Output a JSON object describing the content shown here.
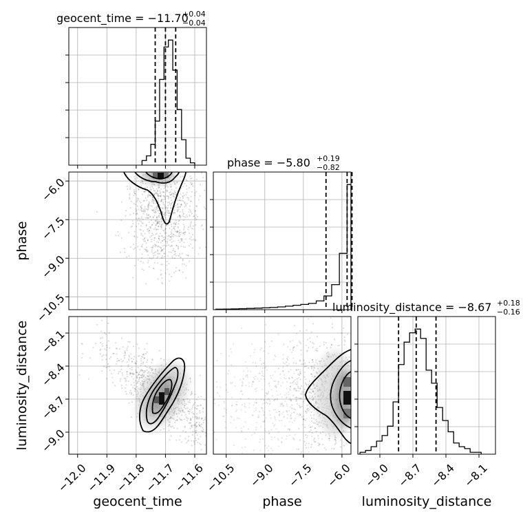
{
  "chart_data": {
    "type": "corner",
    "parameters": [
      {
        "name": "geocent_time",
        "median": -11.7,
        "plus": 0.04,
        "minus": 0.04,
        "title": {
          "prefix": "geocent_time = −11.70",
          "sup": "+0.04",
          "sub": "−0.04"
        },
        "range": [
          -12.03,
          -11.56
        ],
        "ticks": [
          -12.0,
          -11.9,
          -11.8,
          -11.7,
          -11.6
        ],
        "tick_labels": [
          "−12.0",
          "−11.9",
          "−11.8",
          "−11.7",
          "−11.6"
        ],
        "quantile_lines": [
          -11.735,
          -11.7,
          -11.665
        ],
        "histogram": {
          "bin_edges": [
            -11.78,
            -11.765,
            -11.75,
            -11.735,
            -11.72,
            -11.705,
            -11.69,
            -11.675,
            -11.66,
            -11.645,
            -11.63,
            -11.615,
            -11.6
          ],
          "counts": [
            2,
            4,
            9,
            19,
            37,
            51,
            54,
            41,
            24,
            11,
            3,
            1
          ]
        }
      },
      {
        "name": "phase",
        "median": -5.8,
        "plus": 0.19,
        "minus": 0.82,
        "title": {
          "prefix": "phase = −5.80",
          "sup": "+0.19",
          "sub": "−0.82"
        },
        "range": [
          -11.0,
          -5.65
        ],
        "ticks": [
          -10.5,
          -9.0,
          -7.5,
          -6.0
        ],
        "tick_labels": [
          "−10.5",
          "−9.0",
          "−7.5",
          "−6.0"
        ],
        "quantile_lines": [
          -6.62,
          -5.8,
          -5.61
        ],
        "histogram": {
          "bin_edges": [
            -10.9,
            -10.6,
            -10.3,
            -10.0,
            -9.7,
            -9.4,
            -9.1,
            -8.8,
            -8.5,
            -8.2,
            -7.9,
            -7.6,
            -7.3,
            -7.0,
            -6.7,
            -6.4,
            -6.1,
            -5.8,
            -5.65
          ],
          "counts": [
            0.4,
            0.5,
            0.6,
            0.8,
            1,
            1.2,
            1.5,
            1.8,
            2.2,
            2.8,
            3.5,
            4.2,
            5,
            7,
            11,
            20,
            45,
            100
          ]
        }
      },
      {
        "name": "luminosity_distance",
        "median": -8.67,
        "plus": 0.18,
        "minus": 0.16,
        "title": {
          "prefix": "luminosity_distance = −8.67",
          "sup": "+0.18",
          "sub": "−0.16"
        },
        "range": [
          -9.2,
          -7.95
        ],
        "ticks": [
          -9.0,
          -8.7,
          -8.4,
          -8.1
        ],
        "tick_labels": [
          "−9.0",
          "−8.7",
          "−8.4",
          "−8.1"
        ],
        "quantile_lines": [
          -8.83,
          -8.67,
          -8.49
        ],
        "histogram": {
          "bin_edges": [
            -9.18,
            -9.13,
            -9.08,
            -9.03,
            -8.98,
            -8.93,
            -8.88,
            -8.83,
            -8.78,
            -8.73,
            -8.68,
            -8.63,
            -8.58,
            -8.53,
            -8.48,
            -8.43,
            -8.38,
            -8.33,
            -8.28,
            -8.23,
            -8.18,
            -8.13,
            -8.08
          ],
          "counts": [
            1,
            2,
            4,
            7,
            10,
            15,
            28,
            48,
            60,
            65,
            67,
            62,
            45,
            38,
            25,
            18,
            12,
            6,
            4,
            3,
            1,
            1
          ]
        }
      }
    ],
    "pairs": [
      {
        "x": "geocent_time",
        "y": "phase",
        "mode": "contour"
      },
      {
        "x": "geocent_time",
        "y": "luminosity_distance",
        "mode": "contour"
      },
      {
        "x": "phase",
        "y": "luminosity_distance",
        "mode": "contour"
      }
    ],
    "grid": true
  }
}
